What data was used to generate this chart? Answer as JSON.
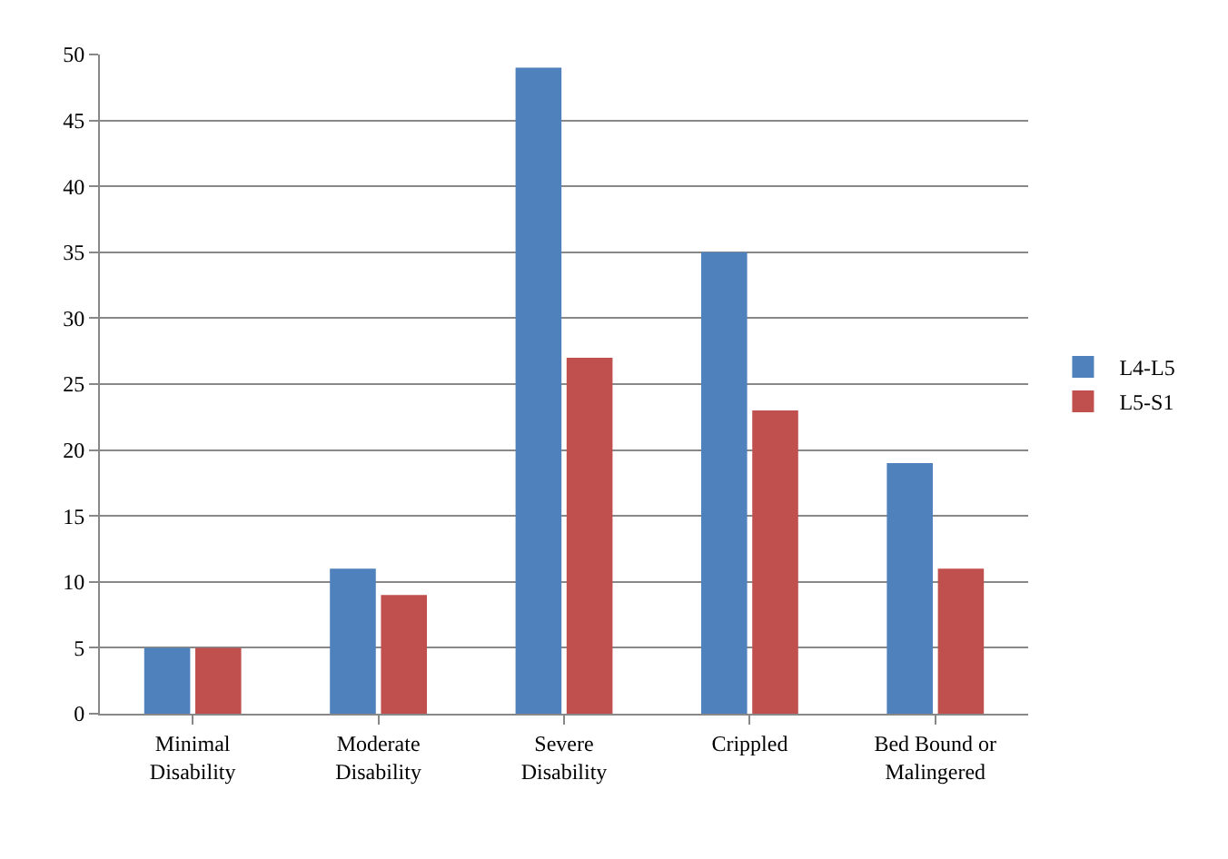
{
  "chart_data": {
    "type": "bar",
    "categories": [
      "Minimal Disability",
      "Moderate Disability",
      "Severe Disability",
      "Crippled",
      "Bed Bound or Malingered"
    ],
    "series": [
      {
        "name": "L4-L5",
        "color": "#4f81bd",
        "values": [
          5,
          11,
          49,
          35,
          19
        ]
      },
      {
        "name": "L5-S1",
        "color": "#c0504d",
        "values": [
          5,
          9,
          27,
          23,
          11
        ]
      }
    ],
    "ylim": [
      0,
      50
    ],
    "yticks": [
      0,
      5,
      10,
      15,
      20,
      25,
      30,
      35,
      40,
      45,
      50
    ],
    "grid": "y",
    "legend": "right"
  }
}
